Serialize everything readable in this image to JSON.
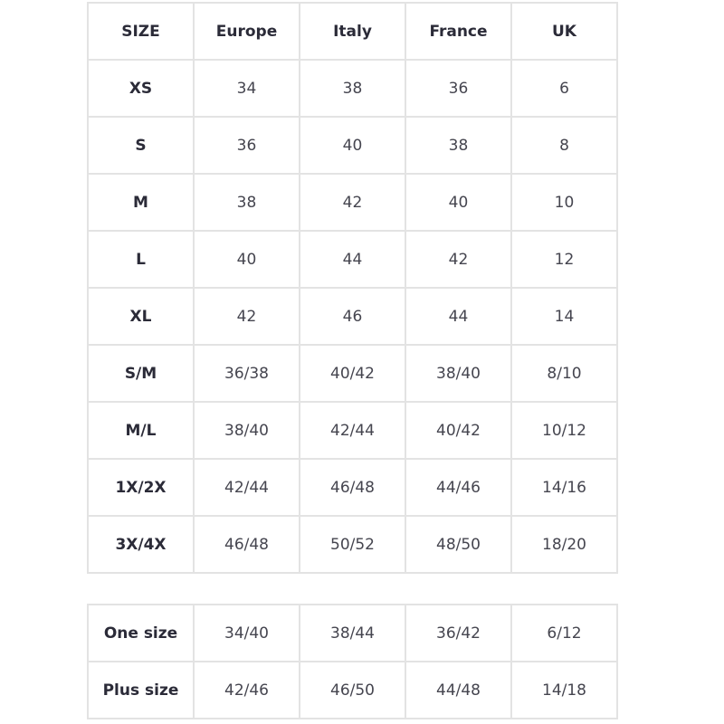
{
  "size_chart": {
    "headers": [
      "SIZE",
      "Europe",
      "Italy",
      "France",
      "UK"
    ],
    "rows": [
      [
        "XS",
        "34",
        "38",
        "36",
        "6"
      ],
      [
        "S",
        "36",
        "40",
        "38",
        "8"
      ],
      [
        "M",
        "38",
        "42",
        "40",
        "10"
      ],
      [
        "L",
        "40",
        "44",
        "42",
        "12"
      ],
      [
        "XL",
        "42",
        "46",
        "44",
        "14"
      ],
      [
        "S/M",
        "36/38",
        "40/42",
        "38/40",
        "8/10"
      ],
      [
        "M/L",
        "38/40",
        "42/44",
        "40/42",
        "10/12"
      ],
      [
        "1X/2X",
        "42/44",
        "46/48",
        "44/46",
        "14/16"
      ],
      [
        "3X/4X",
        "46/48",
        "50/52",
        "48/50",
        "18/20"
      ]
    ]
  },
  "extra_sizes": {
    "rows": [
      [
        "One size",
        "34/40",
        "38/44",
        "36/42",
        "6/12"
      ],
      [
        "Plus size",
        "42/46",
        "46/50",
        "44/48",
        "14/18"
      ]
    ]
  }
}
